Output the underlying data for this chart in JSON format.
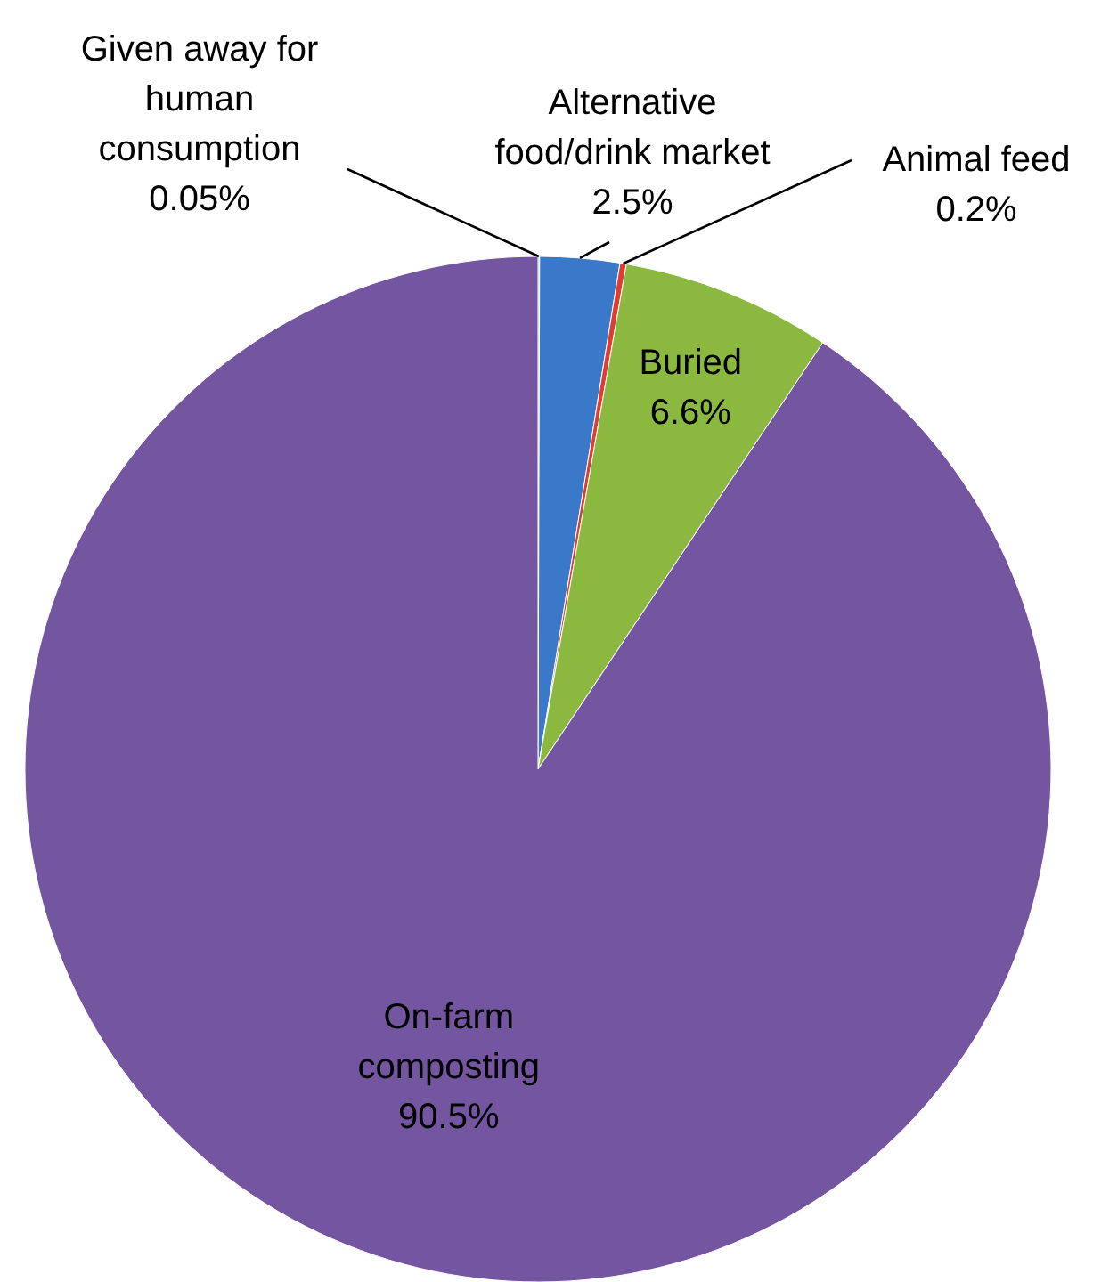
{
  "chart_data": {
    "type": "pie",
    "categories": [
      "Given away for\nhuman\nconsumption",
      "Alternative\nfood/drink market",
      "Animal feed",
      "Buried",
      "On-farm\ncomposting"
    ],
    "values": [
      0.05,
      2.5,
      0.2,
      6.6,
      90.5
    ],
    "value_labels": [
      "0.05%",
      "2.5%",
      "0.2%",
      "6.6%",
      "90.5%"
    ],
    "colors": [
      "#4bacc6",
      "#3a78c9",
      "#e03c31",
      "#8bb940",
      "#7456a0"
    ]
  }
}
